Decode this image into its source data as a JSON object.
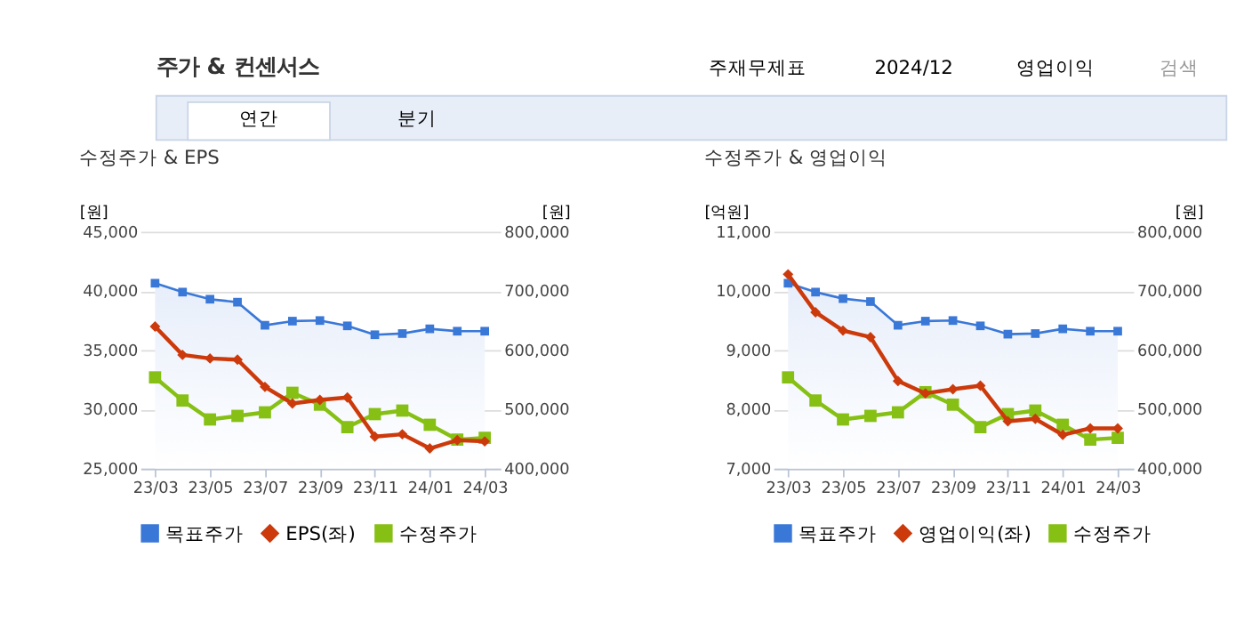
{
  "chart_data": [
    {
      "type": "line",
      "title": "수정주가 & EPS",
      "ylabel": "[원]",
      "y2label": "[원]",
      "annotations": [
        "주가 & 컨센서스",
        "주재무제표",
        "2024/12",
        "영업이익",
        "검색",
        "연간",
        "분기"
      ],
      "categories": [
        "23/03",
        null,
        "23/05",
        null,
        "23/07",
        null,
        "23/09",
        null,
        "23/11",
        null,
        "24/01",
        null,
        "24/03"
      ],
      "ylim": [
        25000,
        45000
      ],
      "yticks": [
        {
          "value": 25000,
          "label": "25,000"
        },
        {
          "value": 30000,
          "label": "30,000"
        },
        {
          "value": 35000,
          "label": "35,000"
        },
        {
          "value": 40000,
          "label": "40,000"
        },
        {
          "value": 45000,
          "label": "45,000"
        }
      ],
      "y2lim": [
        400000,
        800000
      ],
      "y2ticks": [
        {
          "value": 400000,
          "label": "400,000"
        },
        {
          "value": 500000,
          "label": "500,000"
        },
        {
          "value": 600000,
          "label": "600,000"
        },
        {
          "value": 700000,
          "label": "700,000"
        },
        {
          "value": 800000,
          "label": "800,000"
        }
      ],
      "grid": "y",
      "legend": "bottom",
      "series": [
        {
          "name": "목표주가",
          "type": "area",
          "axis": "y2",
          "color": "#3a78d8",
          "values": [
            713000,
            698000,
            686000,
            681000,
            642000,
            649000,
            650000,
            641000,
            626000,
            628000,
            636000,
            632000,
            632000
          ]
        },
        {
          "name": "EPS(좌)",
          "marker": "diamond",
          "color": "#cc3a0c",
          "values": [
            37000,
            34600,
            34300,
            34200,
            31900,
            30500,
            30800,
            31000,
            27700,
            27900,
            26700,
            27400,
            27300
          ]
        },
        {
          "name": "수정주가",
          "marker": "square",
          "axis": "y2",
          "color": "#86c014",
          "values": [
            554000,
            515000,
            483000,
            489000,
            495000,
            528000,
            508000,
            470000,
            492000,
            498000,
            474000,
            449000,
            452000
          ]
        }
      ]
    },
    {
      "type": "line",
      "title": "수정주가 & 영업이익",
      "ylabel": "[억원]",
      "y2label": "[원]",
      "categories": [
        "23/03",
        null,
        "23/05",
        null,
        "23/07",
        null,
        "23/09",
        null,
        "23/11",
        null,
        "24/01",
        null,
        "24/03"
      ],
      "ylim": [
        7000,
        11000
      ],
      "yticks": [
        {
          "value": 7000,
          "label": "7,000"
        },
        {
          "value": 8000,
          "label": "8,000"
        },
        {
          "value": 9000,
          "label": "9,000"
        },
        {
          "value": 10000,
          "label": "10,000"
        },
        {
          "value": 11000,
          "label": "11,000"
        }
      ],
      "y2lim": [
        400000,
        800000
      ],
      "y2ticks": [
        {
          "value": 400000,
          "label": "400,000"
        },
        {
          "value": 500000,
          "label": "500,000"
        },
        {
          "value": 600000,
          "label": "600,000"
        },
        {
          "value": 700000,
          "label": "700,000"
        },
        {
          "value": 800000,
          "label": "800,000"
        }
      ],
      "grid": "y",
      "legend": "bottom",
      "series": [
        {
          "name": "목표주가",
          "type": "area",
          "axis": "y2",
          "color": "#3a78d8",
          "values": [
            713000,
            698000,
            687000,
            682000,
            642000,
            649000,
            650000,
            641000,
            627000,
            628000,
            636000,
            632000,
            632000
          ]
        },
        {
          "name": "영업이익(좌)",
          "marker": "diamond",
          "color": "#cc3a0c",
          "values": [
            10280,
            9640,
            9330,
            9220,
            8480,
            8270,
            8340,
            8400,
            7800,
            7840,
            7570,
            7680,
            7680
          ]
        },
        {
          "name": "수정주가",
          "marker": "square",
          "axis": "y2",
          "color": "#86c014",
          "values": [
            554000,
            515000,
            483000,
            489000,
            495000,
            529000,
            508000,
            470000,
            492000,
            498000,
            474000,
            449000,
            452000
          ]
        }
      ]
    }
  ]
}
